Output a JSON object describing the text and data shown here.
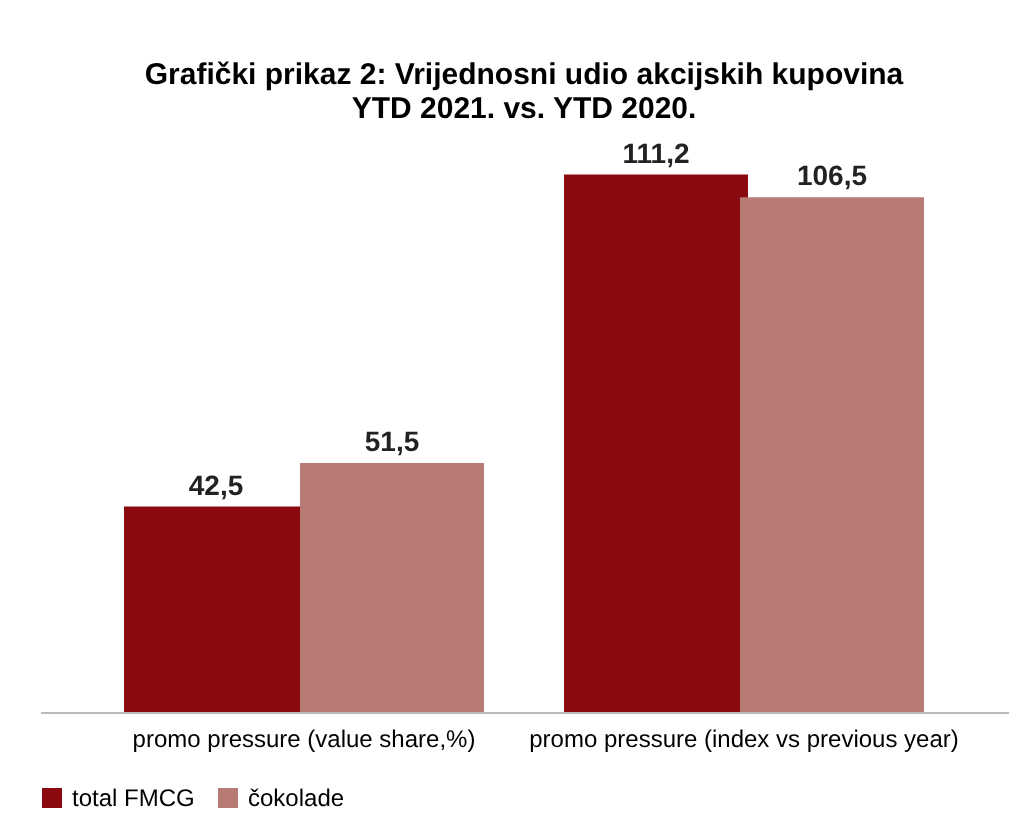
{
  "chart_data": {
    "type": "bar",
    "title": "Grafički prikaz 2: Vrijednosni udio akcijskih kupovina\nYTD 2021. vs. YTD 2020.",
    "categories": [
      "promo pressure (value share,%)",
      "promo pressure (index vs previous year)"
    ],
    "series": [
      {
        "name": "total FMCG",
        "color": "#8b0a0f",
        "values": [
          42.5,
          111.2
        ],
        "value_labels": [
          "42,5",
          "111,2"
        ]
      },
      {
        "name": "čokolade",
        "color": "#b87a74",
        "values": [
          51.5,
          106.5
        ],
        "value_labels": [
          "51,5",
          "106,5"
        ]
      }
    ],
    "legend": "bottom",
    "grid": false
  }
}
